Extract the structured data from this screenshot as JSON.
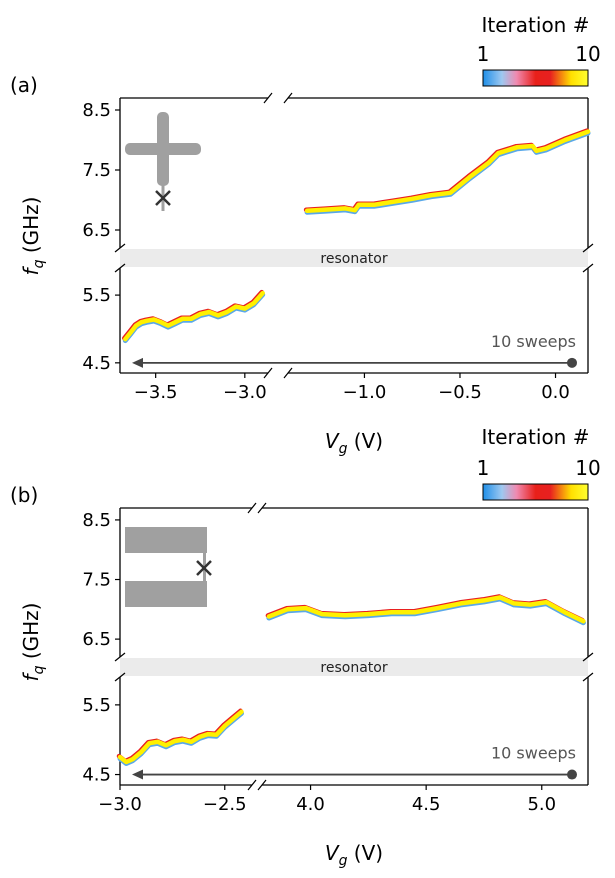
{
  "chart_data": [
    {
      "type": "line",
      "panel_label": "(a)",
      "colorbar": {
        "title": "Iteration #",
        "min_label": "1",
        "max_label": "10",
        "colors": [
          "#1f8fe8",
          "#9ec8f0",
          "#f08ab0",
          "#e8201a",
          "#e82020",
          "#ffe000",
          "#ffff30"
        ]
      },
      "xlabel": "V",
      "xlabel_sub": "g",
      "xlabel_unit": "(V)",
      "ylabel": "f",
      "ylabel_sub": "q",
      "ylabel_unit": "(GHz)",
      "x_left": {
        "range": [
          -3.7,
          -2.87
        ],
        "ticks": [
          "-3.5",
          "-3.0"
        ],
        "tick_values": [
          -3.5,
          -3.0
        ]
      },
      "x_right": {
        "range": [
          -1.4,
          0.17
        ],
        "ticks": [
          "-1.0",
          "-0.5",
          "0.0"
        ],
        "tick_values": [
          -1.0,
          -0.5,
          0.0
        ]
      },
      "y_upper": {
        "range": [
          6.2,
          8.7
        ],
        "ticks": [
          "6.5",
          "7.5",
          "8.5"
        ],
        "tick_values": [
          6.5,
          7.5,
          8.5
        ]
      },
      "y_lower": {
        "range": [
          4.35,
          5.9
        ],
        "ticks": [
          "4.5",
          "5.5"
        ],
        "tick_values": [
          4.5,
          5.5
        ]
      },
      "band_label": "resonator",
      "sweep_label": "10 sweeps",
      "inset": "cross",
      "series_lower_left": {
        "x": [
          -3.67,
          -3.64,
          -3.61,
          -3.58,
          -3.55,
          -3.51,
          -3.47,
          -3.43,
          -3.39,
          -3.35,
          -3.3,
          -3.25,
          -3.2,
          -3.15,
          -3.1,
          -3.05,
          -3.0,
          -2.95,
          -2.9
        ],
        "y": [
          4.85,
          4.95,
          5.05,
          5.1,
          5.12,
          5.14,
          5.1,
          5.05,
          5.1,
          5.15,
          5.15,
          5.22,
          5.25,
          5.2,
          5.25,
          5.33,
          5.3,
          5.38,
          5.53
        ]
      },
      "series_upper_right": {
        "x": [
          -1.3,
          -1.2,
          -1.1,
          -1.05,
          -1.03,
          -0.95,
          -0.85,
          -0.75,
          -0.65,
          -0.55,
          -0.45,
          -0.35,
          -0.3,
          -0.2,
          -0.12,
          -0.1,
          -0.05,
          0.05,
          0.17
        ],
        "y": [
          6.82,
          6.84,
          6.86,
          6.83,
          6.92,
          6.92,
          6.97,
          7.02,
          7.08,
          7.12,
          7.38,
          7.62,
          7.78,
          7.88,
          7.9,
          7.82,
          7.86,
          8.0,
          8.14
        ]
      }
    },
    {
      "type": "line",
      "panel_label": "(b)",
      "colorbar": {
        "title": "Iteration #",
        "min_label": "1",
        "max_label": "10",
        "colors": [
          "#1f8fe8",
          "#9ec8f0",
          "#f08ab0",
          "#e8201a",
          "#e82020",
          "#ffe000",
          "#ffff30"
        ]
      },
      "xlabel": "V",
      "xlabel_sub": "g",
      "xlabel_unit": "(V)",
      "ylabel": "f",
      "ylabel_sub": "q",
      "ylabel_unit": "(GHz)",
      "x_left": {
        "range": [
          -3.0,
          -2.37
        ],
        "ticks": [
          "-3.0",
          "-2.5"
        ],
        "tick_values": [
          -3.0,
          -2.5
        ]
      },
      "x_right": {
        "range": [
          3.79,
          5.2
        ],
        "ticks": [
          "4.0",
          "4.5",
          "5.0"
        ],
        "tick_values": [
          4.0,
          4.5,
          5.0
        ]
      },
      "y_upper": {
        "range": [
          6.2,
          8.7
        ],
        "ticks": [
          "6.5",
          "7.5",
          "8.5"
        ],
        "tick_values": [
          6.5,
          7.5,
          8.5
        ]
      },
      "y_lower": {
        "range": [
          4.35,
          5.9
        ],
        "ticks": [
          "4.5",
          "5.5"
        ],
        "tick_values": [
          4.5,
          5.5
        ]
      },
      "band_label": "resonator",
      "sweep_label": "10 sweeps",
      "inset": "capacitor",
      "series_lower_left": {
        "x": [
          -3.0,
          -2.97,
          -2.94,
          -2.9,
          -2.86,
          -2.82,
          -2.78,
          -2.74,
          -2.7,
          -2.66,
          -2.62,
          -2.58,
          -2.54,
          -2.5,
          -2.46,
          -2.42
        ],
        "y": [
          4.75,
          4.68,
          4.72,
          4.82,
          4.95,
          4.97,
          4.92,
          4.98,
          5.0,
          4.97,
          5.04,
          5.08,
          5.07,
          5.2,
          5.3,
          5.4
        ]
      },
      "series_upper_right": {
        "x": [
          3.82,
          3.9,
          3.98,
          4.05,
          4.15,
          4.25,
          4.35,
          4.45,
          4.55,
          4.65,
          4.75,
          4.82,
          4.88,
          4.95,
          5.02,
          5.1,
          5.18
        ],
        "y": [
          6.88,
          7.0,
          7.02,
          6.92,
          6.9,
          6.92,
          6.95,
          6.95,
          7.02,
          7.1,
          7.15,
          7.2,
          7.1,
          7.08,
          7.12,
          6.95,
          6.8
        ]
      }
    }
  ]
}
